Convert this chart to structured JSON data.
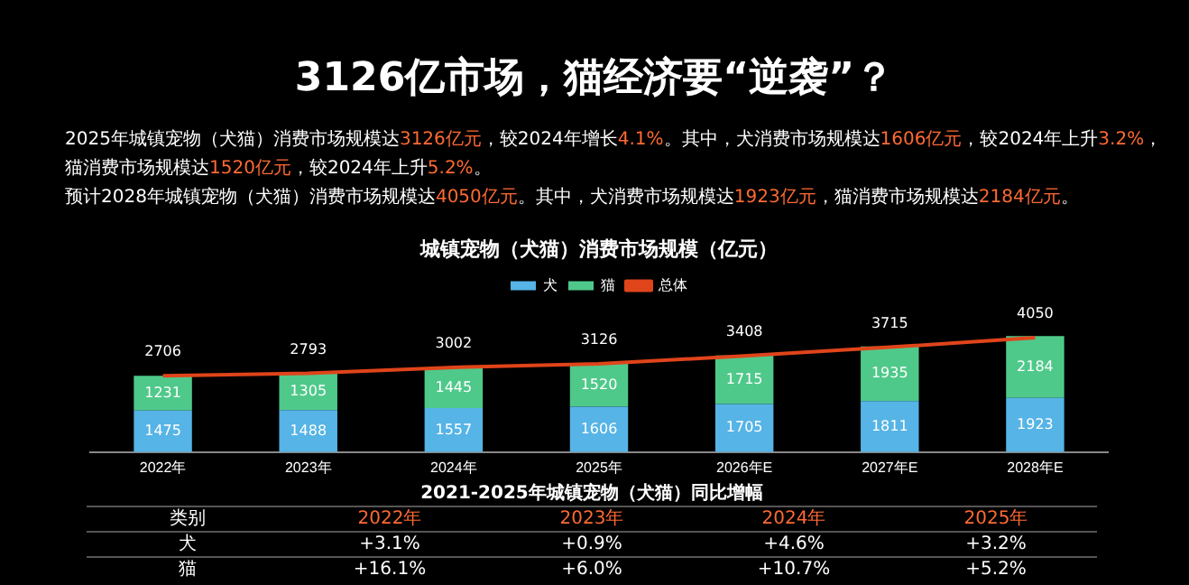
{
  "chart_data": {
    "type": "bar",
    "stacked": true,
    "title": "3126亿市场，猫经济要“逆袭”？",
    "subtitle": "城镇宠物（犬猫）消费市场规模（亿元）",
    "categories": [
      "2022年",
      "2023年",
      "2024年",
      "2025年",
      "2026年E",
      "2027年E",
      "2028年E"
    ],
    "series": [
      {
        "name": "犬",
        "color": "#56b4e6",
        "values": [
          1475,
          1488,
          1557,
          1606,
          1705,
          1811,
          1923
        ]
      },
      {
        "name": "猫",
        "color": "#4fc98a",
        "values": [
          1231,
          1305,
          1445,
          1520,
          1715,
          1935,
          2184
        ]
      },
      {
        "name": "总体",
        "type": "line",
        "color": "#e0441a",
        "values": [
          2706,
          2793,
          3002,
          3126,
          3408,
          3715,
          4050
        ]
      }
    ],
    "data_labels": true,
    "legend": "top",
    "marker": "none",
    "line_style": "solid",
    "tick_labels": "x",
    "annotations": [
      "2025年城镇宠物（犬猫）消费市场规模达3126亿元，较2024年增长4.1%。其中，犬消费市场规模达1606亿元，较2024年上升3.2%，猫消费市场规模达1520亿元，较2024年上升5.2%。",
      "预计2028年城镇宠物（犬猫）消费市场规模达4050亿元。其中，犬消费市场规模达1923亿元，猫消费市场规模达2184亿元。",
      "2021-2025年城镇宠物（犬猫）同比增幅",
      "类别",
      "2022年",
      "2023年",
      "2024年",
      "2025年",
      "犬",
      "+3.1%",
      "+0.9%",
      "+4.6%",
      "+3.2%",
      "猫",
      "+16.1%",
      "+6.0%",
      "+10.7%",
      "+5.2%"
    ]
  }
}
